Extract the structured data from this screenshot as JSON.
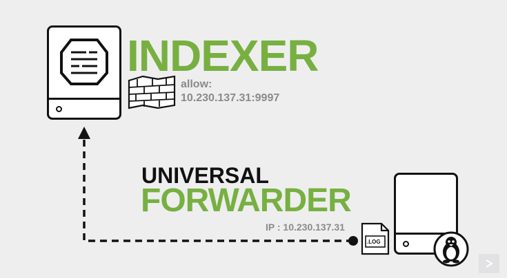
{
  "indexer": {
    "title": "INDEXER",
    "allow_label": "allow:",
    "allow_value": "10.230.137.31:9997"
  },
  "forwarder": {
    "title_line1": "UNIVERSAL",
    "title_line2": "FORWARDER",
    "ip_text": "IP : 10.230.137.31",
    "log_label": ".LOG"
  },
  "colors": {
    "accent_green": "#77b041",
    "background": "#eeeeef",
    "outline": "#111111",
    "muted_text": "#8a8a8a"
  },
  "icons": [
    "server-icon",
    "hexagon-document-icon",
    "firewall-icon",
    "log-file-icon",
    "linux-penguin-icon",
    "next-arrow-icon"
  ]
}
